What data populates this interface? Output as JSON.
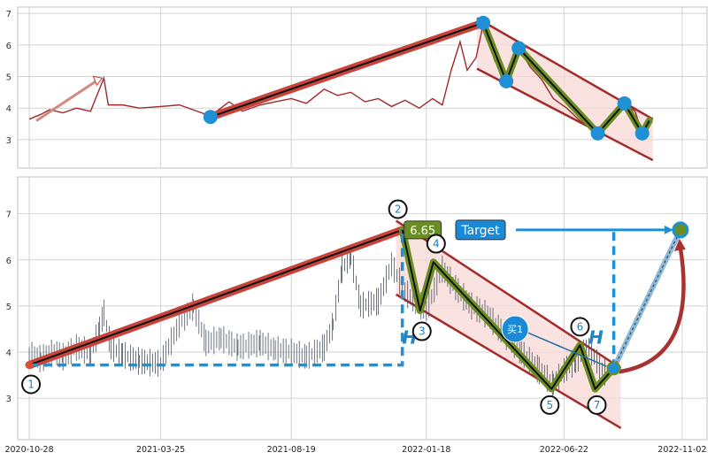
{
  "colors": {
    "background": "#ffffff",
    "plot_bg": "#ffffff",
    "grid": "#d2d2d2",
    "frame": "#c0c0c0",
    "close_line": "#a0282a",
    "candles": "#4a5563",
    "trend_red": "#c8443a",
    "trend_core": "#111111",
    "wave_green": "#6b8e23",
    "channel_fill": "#f7d8d4",
    "channel_line": "#a52a2a",
    "pivot_blue": "#1f8fd6",
    "dashed_blue": "#1f8fd6",
    "arrow_red": "#a83232",
    "label_green": "#6b8e23",
    "label_blue": "#1a8ad6"
  },
  "chart_data": [
    {
      "type": "line",
      "panel": "top",
      "title": "",
      "xlabel": "",
      "ylabel": "",
      "x_range": [
        "2020-10-15",
        "2022-11-30"
      ],
      "ylim": [
        2.1,
        7.2
      ],
      "yticks": [
        "3",
        "4",
        "5",
        "6",
        "7"
      ],
      "grid": true,
      "series": [
        {
          "values": [
            [
              "2020-10-28",
              3.65
            ],
            [
              "2020-11-10",
              3.8
            ],
            [
              "2020-11-20",
              3.95
            ],
            [
              "2020-12-05",
              3.85
            ],
            [
              "2020-12-20",
              4.0
            ],
            [
              "2021-01-05",
              3.9
            ],
            [
              "2021-01-15",
              4.6
            ],
            [
              "2021-01-20",
              4.95
            ],
            [
              "2021-01-25",
              4.1
            ],
            [
              "2021-02-10",
              4.1
            ],
            [
              "2021-03-01",
              4.0
            ],
            [
              "2021-03-25",
              4.05
            ],
            [
              "2021-04-15",
              4.1
            ],
            [
              "2021-05-05",
              3.9
            ],
            [
              "2021-05-20",
              3.75
            ],
            [
              "2021-06-10",
              4.2
            ],
            [
              "2021-06-25",
              3.9
            ],
            [
              "2021-07-15",
              4.1
            ],
            [
              "2021-08-01",
              4.2
            ],
            [
              "2021-08-19",
              4.3
            ],
            [
              "2021-09-05",
              4.15
            ],
            [
              "2021-09-25",
              4.6
            ],
            [
              "2021-10-10",
              4.4
            ],
            [
              "2021-10-25",
              4.5
            ],
            [
              "2021-11-10",
              4.2
            ],
            [
              "2021-11-25",
              4.3
            ],
            [
              "2021-12-10",
              4.05
            ],
            [
              "2021-12-25",
              4.25
            ],
            [
              "2022-01-10",
              4.0
            ],
            [
              "2022-01-25",
              4.3
            ],
            [
              "2022-02-05",
              4.1
            ],
            [
              "2022-02-15",
              5.2
            ],
            [
              "2022-02-25",
              6.1
            ],
            [
              "2022-03-05",
              5.2
            ],
            [
              "2022-03-15",
              5.6
            ],
            [
              "2022-03-23",
              6.65
            ],
            [
              "2022-04-05",
              5.5
            ],
            [
              "2022-04-18",
              4.9
            ],
            [
              "2022-04-26",
              5.5
            ],
            [
              "2022-05-02",
              5.9
            ],
            [
              "2022-05-15",
              5.3
            ],
            [
              "2022-05-28",
              4.9
            ],
            [
              "2022-06-10",
              4.3
            ],
            [
              "2022-06-25",
              4.0
            ],
            [
              "2022-07-10",
              3.6
            ],
            [
              "2022-07-30",
              3.2
            ],
            [
              "2022-08-15",
              3.6
            ],
            [
              "2022-08-29",
              4.15
            ],
            [
              "2022-09-10",
              3.9
            ],
            [
              "2022-09-18",
              3.2
            ],
            [
              "2022-09-26",
              3.7
            ]
          ]
        }
      ],
      "trend_line": [
        [
          "2021-05-20",
          3.72
        ],
        [
          "2022-03-23",
          6.7
        ]
      ],
      "wave_points": [
        [
          "2022-03-23",
          6.7
        ],
        [
          "2022-04-18",
          4.85
        ],
        [
          "2022-05-02",
          5.9
        ],
        [
          "2022-07-30",
          3.2
        ],
        [
          "2022-08-29",
          4.15
        ],
        [
          "2022-09-18",
          3.2
        ],
        [
          "2022-09-26",
          3.6
        ]
      ],
      "pivots": [
        [
          "2021-05-20",
          3.72
        ],
        [
          "2022-03-23",
          6.7
        ],
        [
          "2022-04-18",
          4.85
        ],
        [
          "2022-05-02",
          5.9
        ],
        [
          "2022-07-30",
          3.2
        ],
        [
          "2022-08-29",
          4.15
        ],
        [
          "2022-09-18",
          3.2
        ]
      ],
      "channel": {
        "upper": [
          [
            "2022-03-16",
            6.85
          ],
          [
            "2022-09-30",
            3.65
          ]
        ],
        "lower": [
          [
            "2022-03-16",
            5.25
          ],
          [
            "2022-09-30",
            2.35
          ]
        ]
      },
      "annotation_arrow": [
        [
          "2020-11-05",
          3.6
        ],
        [
          "2021-01-18",
          4.95
        ]
      ]
    },
    {
      "type": "candlestick",
      "panel": "bottom",
      "title": "",
      "xlabel": "",
      "ylabel": "",
      "x_range": [
        "2020-10-15",
        "2022-11-30"
      ],
      "ylim": [
        2.1,
        7.8
      ],
      "yticks": [
        "3",
        "4",
        "5",
        "6",
        "7"
      ],
      "xticks": [
        "2020-10-28",
        "2021-03-25",
        "2021-08-19",
        "2022-01-18",
        "2022-06-22",
        "2022-11-02"
      ],
      "grid": true,
      "series": [
        {
          "values": [
            [
              "2020-10-28",
              3.95
            ],
            [
              "2020-11-10",
              3.85
            ],
            [
              "2020-11-25",
              4.0
            ],
            [
              "2020-12-05",
              3.9
            ],
            [
              "2020-12-20",
              4.1
            ],
            [
              "2021-01-05",
              4.0
            ],
            [
              "2021-01-15",
              4.5
            ],
            [
              "2021-01-20",
              4.85
            ],
            [
              "2021-01-28",
              4.1
            ],
            [
              "2021-02-10",
              3.95
            ],
            [
              "2021-03-01",
              3.8
            ],
            [
              "2021-03-25",
              3.75
            ],
            [
              "2021-04-15",
              4.6
            ],
            [
              "2021-05-01",
              5.0
            ],
            [
              "2021-05-15",
              4.2
            ],
            [
              "2021-06-01",
              4.3
            ],
            [
              "2021-06-20",
              4.1
            ],
            [
              "2021-07-15",
              4.2
            ],
            [
              "2021-08-01",
              4.05
            ],
            [
              "2021-08-19",
              4.0
            ],
            [
              "2021-09-05",
              3.9
            ],
            [
              "2021-09-25",
              4.1
            ],
            [
              "2021-10-05",
              4.6
            ],
            [
              "2021-10-15",
              5.8
            ],
            [
              "2021-10-25",
              6.1
            ],
            [
              "2021-11-05",
              5.0
            ],
            [
              "2021-11-25",
              5.1
            ],
            [
              "2021-12-10",
              5.9
            ],
            [
              "2021-12-25",
              5.3
            ],
            [
              "2022-01-18",
              4.9
            ],
            [
              "2022-02-05",
              5.8
            ],
            [
              "2022-02-20",
              5.4
            ],
            [
              "2022-03-10",
              5.0
            ],
            [
              "2022-03-28",
              4.8
            ],
            [
              "2022-04-15",
              4.4
            ],
            [
              "2022-05-05",
              4.0
            ],
            [
              "2022-05-25",
              3.6
            ],
            [
              "2022-06-10",
              3.3
            ],
            [
              "2022-06-22",
              3.6
            ],
            [
              "2022-07-05",
              3.8
            ],
            [
              "2022-07-20",
              4.1
            ],
            [
              "2022-08-01",
              3.7
            ],
            [
              "2022-08-10",
              3.5
            ]
          ]
        }
      ],
      "trend_line": [
        [
          "2020-10-28",
          3.72
        ],
        [
          "2021-12-22",
          6.65
        ]
      ],
      "wave_points": [
        [
          "2021-12-22",
          6.65
        ],
        [
          "2022-01-11",
          4.9
        ],
        [
          "2022-01-26",
          5.95
        ],
        [
          "2022-06-08",
          3.2
        ],
        [
          "2022-07-10",
          4.15
        ],
        [
          "2022-07-27",
          3.2
        ],
        [
          "2022-08-17",
          3.65
        ]
      ],
      "channel": {
        "upper": [
          [
            "2021-12-15",
            6.85
          ],
          [
            "2022-08-25",
            3.65
          ]
        ],
        "lower": [
          [
            "2021-12-15",
            5.25
          ],
          [
            "2022-08-25",
            2.35
          ]
        ]
      },
      "entry_point": [
        "2022-08-17",
        3.65
      ],
      "target_point": [
        "2022-10-31",
        6.65
      ],
      "price_label": {
        "text": "6.65",
        "at": [
          "2021-12-24",
          6.65
        ]
      },
      "target_label": {
        "text": "Target",
        "at": [
          "2022-03-20",
          6.65
        ]
      },
      "buy_label": {
        "text": "买1",
        "at": [
          "2022-04-28",
          4.5
        ]
      },
      "height_markers": [
        {
          "text": "H",
          "at": [
            "2021-12-30",
            4.18
          ]
        },
        {
          "text": "H",
          "at": [
            "2022-07-28",
            4.18
          ]
        }
      ],
      "wave_labels": [
        {
          "text": "1",
          "at": [
            "2020-10-30",
            3.3
          ]
        },
        {
          "text": "2",
          "at": [
            "2021-12-17",
            7.1
          ]
        },
        {
          "text": "3",
          "at": [
            "2022-01-13",
            4.45
          ]
        },
        {
          "text": "4",
          "at": [
            "2022-01-29",
            6.35
          ]
        },
        {
          "text": "5",
          "at": [
            "2022-06-06",
            2.85
          ]
        },
        {
          "text": "6",
          "at": [
            "2022-07-10",
            4.55
          ]
        },
        {
          "text": "7",
          "at": [
            "2022-07-29",
            2.85
          ]
        }
      ]
    }
  ]
}
